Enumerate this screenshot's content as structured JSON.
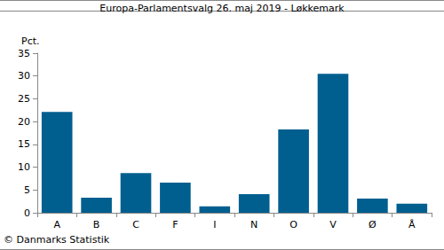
{
  "chart_data": {
    "type": "bar",
    "title": "Europa-Parlamentsvalg 26. maj 2019 - Løkkemark",
    "ylabel": "Pct.",
    "annotations": [
      "© Danmarks Statistik"
    ],
    "categories": [
      "A",
      "B",
      "C",
      "F",
      "I",
      "N",
      "O",
      "V",
      "Ø",
      "Å"
    ],
    "values": [
      22.1,
      3.3,
      8.7,
      6.6,
      1.4,
      4.1,
      18.3,
      30.5,
      3.1,
      2.0
    ],
    "color": "#005f8f",
    "ylim": [
      0,
      35
    ],
    "yticks": [
      0,
      5,
      10,
      15,
      20,
      25,
      30,
      35
    ],
    "grid": false
  }
}
